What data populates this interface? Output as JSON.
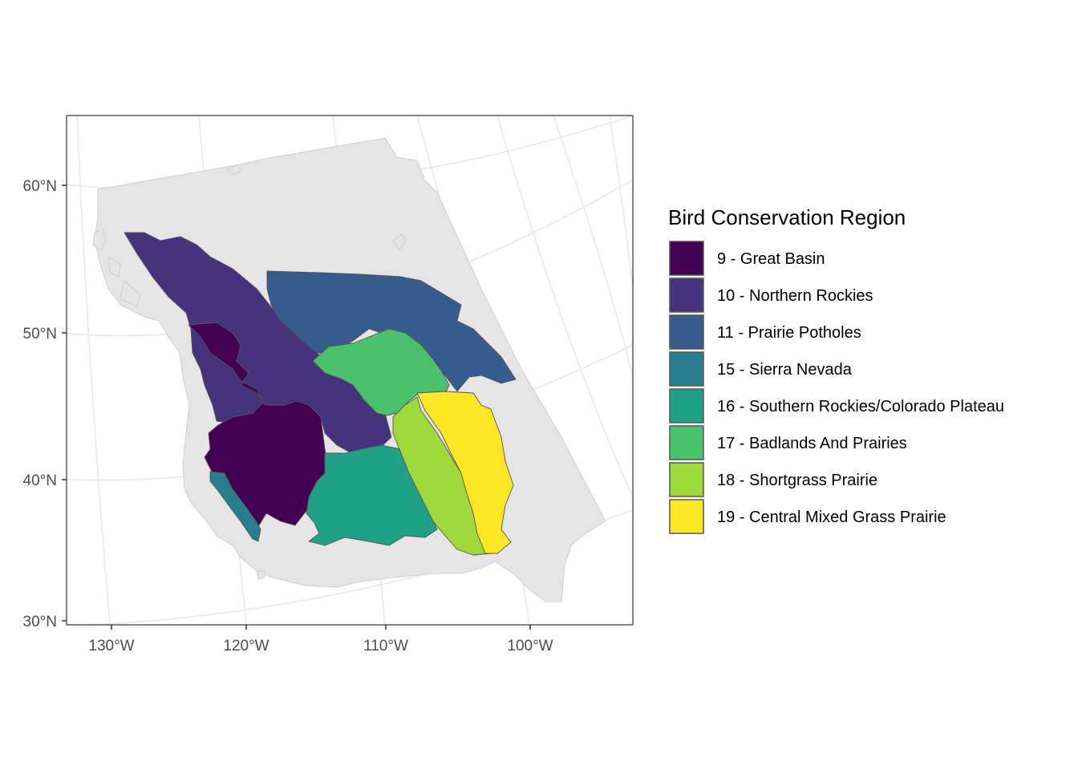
{
  "map": {
    "x_axis_labels": [
      "130°W",
      "120°W",
      "110°W",
      "100°W"
    ],
    "y_axis_labels": [
      "60°N",
      "50°N",
      "40°N",
      "30°N"
    ],
    "background_land_color": "#e5e5e5",
    "panel_border_color": "#333333"
  },
  "legend": {
    "title": "Bird Conservation Region",
    "items": [
      {
        "label": "9 - Great Basin",
        "color": "#440154"
      },
      {
        "label": "10 - Northern Rockies",
        "color": "#46337E"
      },
      {
        "label": "11 - Prairie Potholes",
        "color": "#365C8D"
      },
      {
        "label": "15 - Sierra Nevada",
        "color": "#277F8E"
      },
      {
        "label": "16 - Southern Rockies/Colorado Plateau",
        "color": "#1FA187"
      },
      {
        "label": "17 - Badlands And Prairies",
        "color": "#4AC16D"
      },
      {
        "label": "18 - Shortgrass Prairie",
        "color": "#9FDA3A"
      },
      {
        "label": "19 - Central Mixed Grass Prairie",
        "color": "#FDE725"
      }
    ]
  }
}
